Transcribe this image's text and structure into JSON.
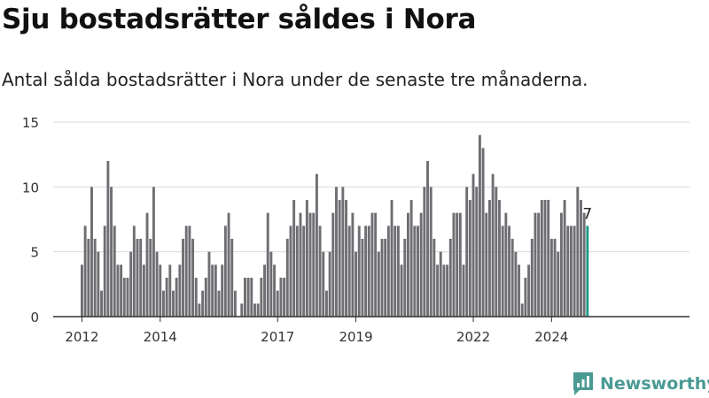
{
  "title": "Sju bostadsrätter såldes i Nora",
  "subtitle": "Antal sålda bostadsrätter i Nora under de senaste tre månaderna.",
  "brand": {
    "name": "Newsworthy",
    "icon": "newsworthy-logo-icon"
  },
  "colors": {
    "bar": "#6e6e73",
    "highlight": "#1f9a8a",
    "grid": "#d9d9d9",
    "axis": "#333333",
    "brand": "#4a9a94"
  },
  "chart_data": {
    "type": "bar",
    "start": "2012-01",
    "ylim": [
      0,
      15
    ],
    "yticks": [
      0,
      5,
      10,
      15
    ],
    "xticks": [
      "2012",
      "2014",
      "2017",
      "2019",
      "2022",
      "2024"
    ],
    "values": [
      4,
      7,
      6,
      10,
      6,
      5,
      2,
      7,
      12,
      10,
      7,
      4,
      4,
      3,
      3,
      5,
      7,
      6,
      6,
      4,
      8,
      6,
      10,
      5,
      4,
      2,
      3,
      4,
      2,
      3,
      4,
      6,
      7,
      7,
      6,
      3,
      1,
      2,
      3,
      5,
      4,
      4,
      2,
      4,
      7,
      8,
      6,
      2,
      0,
      1,
      3,
      3,
      3,
      1,
      1,
      3,
      4,
      8,
      5,
      4,
      2,
      3,
      3,
      6,
      7,
      9,
      7,
      8,
      7,
      9,
      8,
      8,
      11,
      7,
      5,
      2,
      5,
      8,
      10,
      9,
      10,
      9,
      7,
      8,
      5,
      7,
      6,
      7,
      7,
      8,
      8,
      5,
      6,
      6,
      7,
      9,
      7,
      7,
      4,
      6,
      8,
      9,
      7,
      7,
      8,
      10,
      12,
      10,
      6,
      4,
      5,
      4,
      4,
      6,
      8,
      8,
      8,
      4,
      10,
      9,
      11,
      10,
      14,
      13,
      8,
      9,
      11,
      10,
      9,
      7,
      8,
      7,
      6,
      5,
      4,
      1,
      3,
      4,
      6,
      8,
      8,
      9,
      9,
      9,
      6,
      6,
      5,
      8,
      9,
      7,
      7,
      7,
      10,
      9,
      8,
      7
    ],
    "highlight": {
      "label": "7",
      "value": 7
    }
  }
}
